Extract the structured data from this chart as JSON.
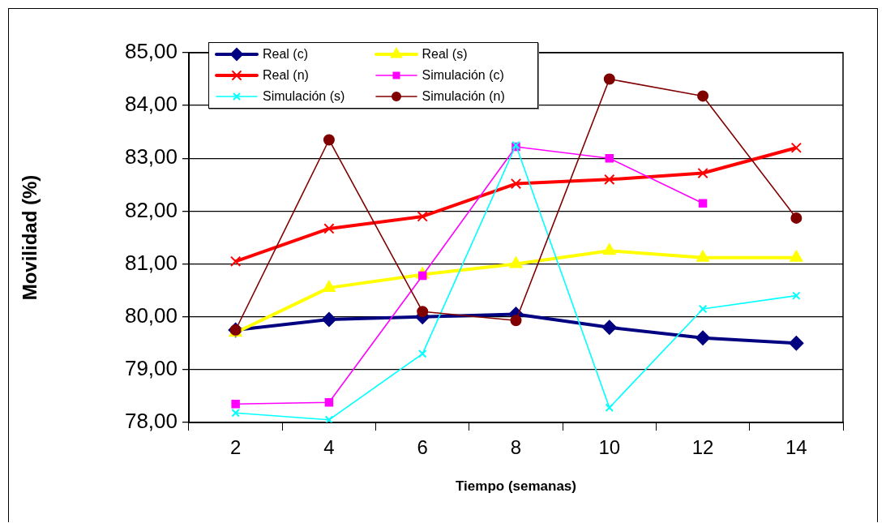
{
  "chart_data": {
    "type": "line",
    "xlabel": "Tiempo (semanas)",
    "ylabel": "Movilidad (%)",
    "categories": [
      "2",
      "4",
      "6",
      "8",
      "10",
      "12",
      "14"
    ],
    "ylim": [
      78,
      85
    ],
    "yticks": [
      {
        "value": 78,
        "label": "78,00"
      },
      {
        "value": 79,
        "label": "79,00"
      },
      {
        "value": 80,
        "label": "80,00"
      },
      {
        "value": 81,
        "label": "81,00"
      },
      {
        "value": 82,
        "label": "82,00"
      },
      {
        "value": 83,
        "label": "83,00"
      },
      {
        "value": 84,
        "label": "84,00"
      },
      {
        "value": 85,
        "label": "85,00"
      }
    ],
    "grid": "y",
    "legend": "top",
    "line_style": "solid",
    "series": [
      {
        "name": "Real (c)",
        "color": "#000080",
        "marker": "diamond",
        "values": [
          79.75,
          79.95,
          80.0,
          80.05,
          79.8,
          79.6,
          79.5
        ]
      },
      {
        "name": "Real (s)",
        "color": "#ffff00",
        "marker": "triangle",
        "values": [
          79.7,
          80.55,
          80.8,
          81.0,
          81.25,
          81.12,
          81.12
        ]
      },
      {
        "name": "Real (n)",
        "color": "#ff0000",
        "marker": "cross",
        "values": [
          81.05,
          81.67,
          81.9,
          82.52,
          82.6,
          82.72,
          83.2
        ]
      },
      {
        "name": "Simulación (c)",
        "color": "#ff00ff",
        "marker": "square",
        "values": [
          78.35,
          78.38,
          80.78,
          83.22,
          83.0,
          82.15,
          null
        ]
      },
      {
        "name": "Simulación (s)",
        "color": "#00ffff",
        "marker": "cross",
        "values": [
          78.18,
          78.05,
          79.3,
          83.25,
          78.28,
          80.15,
          80.4
        ]
      },
      {
        "name": "Simulación (n)",
        "color": "#800000",
        "marker": "circle",
        "values": [
          79.75,
          83.35,
          80.1,
          79.93,
          84.5,
          84.18,
          81.87
        ]
      }
    ]
  }
}
